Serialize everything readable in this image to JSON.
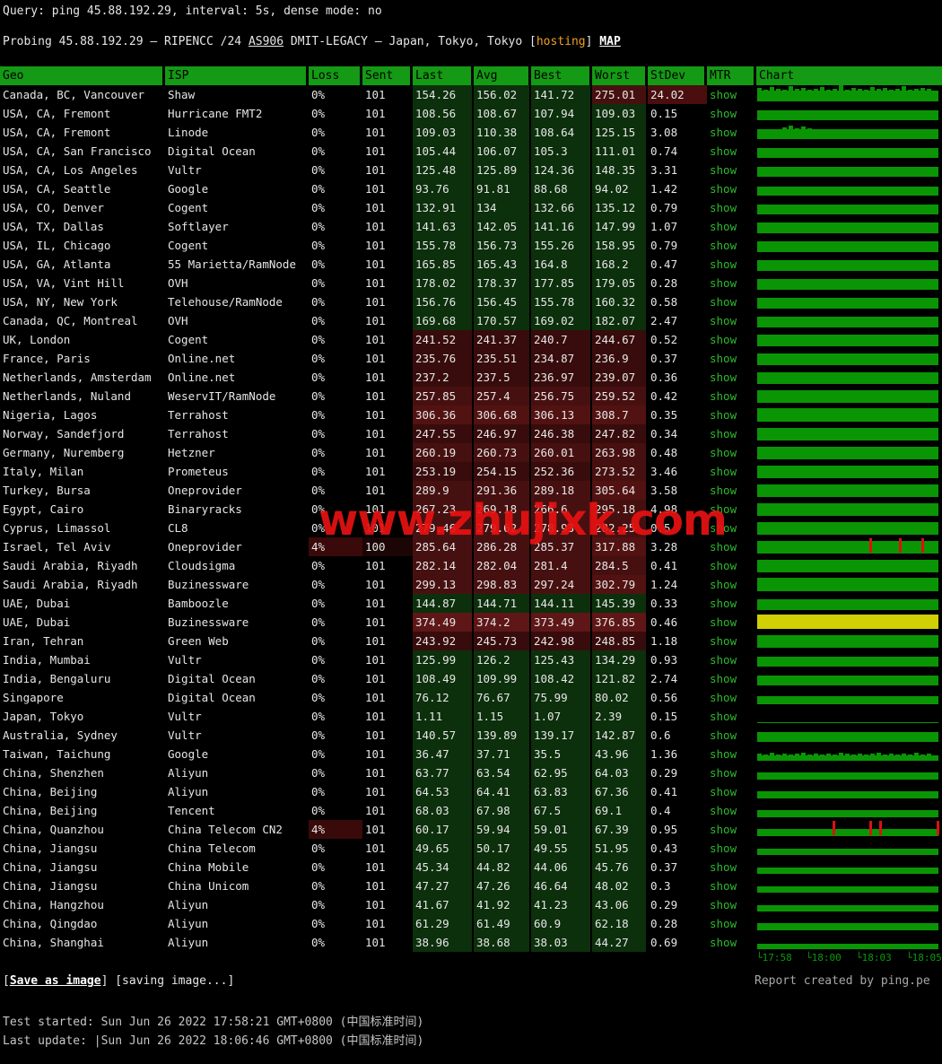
{
  "query_line": "Query: ping 45.88.192.29, interval: 5s, dense mode: no",
  "probe": {
    "prefix": "Probing 45.88.192.29 — RIPENCC /24 ",
    "asn": "AS906",
    "mid": " DMIT-LEGACY — Japan, Tokyo, Tokyo [",
    "hosting": "hosting",
    "suffix": "] ",
    "map": "MAP"
  },
  "columns": [
    "Geo",
    "ISP",
    "Loss",
    "Sent",
    "Last",
    "Avg",
    "Best",
    "Worst",
    "StDev",
    "MTR",
    "Chart"
  ],
  "mtr_label": "show",
  "rows": [
    {
      "geo": "Canada, BC, Vancouver",
      "isp": "Shaw",
      "loss": "0%",
      "sent": "101",
      "last": "154.26",
      "avg": "156.02",
      "best": "141.72",
      "worst": "275.01",
      "stdev": "24.02",
      "bar": {
        "h": 12,
        "spikes": [
          3,
          1,
          4,
          2,
          1,
          5,
          2,
          3,
          1,
          2,
          4,
          1,
          2,
          6,
          1,
          3,
          2,
          1,
          4,
          2,
          3,
          1,
          2,
          5,
          1,
          2,
          3,
          2
        ]
      }
    },
    {
      "geo": "USA, CA, Fremont",
      "isp": "Hurricane FMT2",
      "loss": "0%",
      "sent": "101",
      "last": "108.56",
      "avg": "108.67",
      "best": "107.94",
      "worst": "109.03",
      "stdev": "0.15",
      "bar": {
        "h": 11
      }
    },
    {
      "geo": "USA, CA, Fremont",
      "isp": "Linode",
      "loss": "0%",
      "sent": "101",
      "last": "109.03",
      "avg": "110.38",
      "best": "108.64",
      "worst": "125.15",
      "stdev": "3.08",
      "bar": {
        "h": 11,
        "spikes": [
          0,
          0,
          0,
          0,
          2,
          4,
          1,
          3,
          1,
          0,
          0,
          0,
          0,
          0,
          0,
          0,
          0,
          0,
          0,
          0,
          0,
          0,
          0,
          0,
          0,
          0,
          0,
          0
        ]
      }
    },
    {
      "geo": "USA, CA, San Francisco",
      "isp": "Digital Ocean",
      "loss": "0%",
      "sent": "101",
      "last": "105.44",
      "avg": "106.07",
      "best": "105.3",
      "worst": "111.01",
      "stdev": "0.74",
      "bar": {
        "h": 11
      }
    },
    {
      "geo": "USA, CA, Los Angeles",
      "isp": "Vultr",
      "loss": "0%",
      "sent": "101",
      "last": "125.48",
      "avg": "125.89",
      "best": "124.36",
      "worst": "148.35",
      "stdev": "3.31",
      "bar": {
        "h": 11
      }
    },
    {
      "geo": "USA, CA, Seattle",
      "isp": "Google",
      "loss": "0%",
      "sent": "101",
      "last": "93.76",
      "avg": "91.81",
      "best": "88.68",
      "worst": "94.02",
      "stdev": "1.42",
      "bar": {
        "h": 10
      }
    },
    {
      "geo": "USA, CO, Denver",
      "isp": "Cogent",
      "loss": "0%",
      "sent": "101",
      "last": "132.91",
      "avg": "134",
      "best": "132.66",
      "worst": "135.12",
      "stdev": "0.79",
      "bar": {
        "h": 11
      }
    },
    {
      "geo": "USA, TX, Dallas",
      "isp": "Softlayer",
      "loss": "0%",
      "sent": "101",
      "last": "141.63",
      "avg": "142.05",
      "best": "141.16",
      "worst": "147.99",
      "stdev": "1.07",
      "bar": {
        "h": 12
      }
    },
    {
      "geo": "USA, IL, Chicago",
      "isp": "Cogent",
      "loss": "0%",
      "sent": "101",
      "last": "155.78",
      "avg": "156.73",
      "best": "155.26",
      "worst": "158.95",
      "stdev": "0.79",
      "bar": {
        "h": 12
      }
    },
    {
      "geo": "USA, GA, Atlanta",
      "isp": "55 Marietta/RamNode",
      "loss": "0%",
      "sent": "101",
      "last": "165.85",
      "avg": "165.43",
      "best": "164.8",
      "worst": "168.2",
      "stdev": "0.47",
      "bar": {
        "h": 12
      }
    },
    {
      "geo": "USA, VA, Vint Hill",
      "isp": "OVH",
      "loss": "0%",
      "sent": "101",
      "last": "178.02",
      "avg": "178.37",
      "best": "177.85",
      "worst": "179.05",
      "stdev": "0.28",
      "bar": {
        "h": 12
      }
    },
    {
      "geo": "USA, NY, New York",
      "isp": "Telehouse/RamNode",
      "loss": "0%",
      "sent": "101",
      "last": "156.76",
      "avg": "156.45",
      "best": "155.78",
      "worst": "160.32",
      "stdev": "0.58",
      "bar": {
        "h": 12
      }
    },
    {
      "geo": "Canada, QC, Montreal",
      "isp": "OVH",
      "loss": "0%",
      "sent": "101",
      "last": "169.68",
      "avg": "170.57",
      "best": "169.02",
      "worst": "182.07",
      "stdev": "2.47",
      "bar": {
        "h": 12
      }
    },
    {
      "geo": "UK, London",
      "isp": "Cogent",
      "loss": "0%",
      "sent": "101",
      "last": "241.52",
      "avg": "241.37",
      "best": "240.7",
      "worst": "244.67",
      "stdev": "0.52",
      "bar": {
        "h": 13
      }
    },
    {
      "geo": "France, Paris",
      "isp": "Online.net",
      "loss": "0%",
      "sent": "101",
      "last": "235.76",
      "avg": "235.51",
      "best": "234.87",
      "worst": "236.9",
      "stdev": "0.37",
      "bar": {
        "h": 13
      }
    },
    {
      "geo": "Netherlands, Amsterdam",
      "isp": "Online.net",
      "loss": "0%",
      "sent": "101",
      "last": "237.2",
      "avg": "237.5",
      "best": "236.97",
      "worst": "239.07",
      "stdev": "0.36",
      "bar": {
        "h": 13
      }
    },
    {
      "geo": "Netherlands, Nuland",
      "isp": "WeservIT/RamNode",
      "loss": "0%",
      "sent": "101",
      "last": "257.85",
      "avg": "257.4",
      "best": "256.75",
      "worst": "259.52",
      "stdev": "0.42",
      "bar": {
        "h": 14
      }
    },
    {
      "geo": "Nigeria, Lagos",
      "isp": "Terrahost",
      "loss": "0%",
      "sent": "101",
      "last": "306.36",
      "avg": "306.68",
      "best": "306.13",
      "worst": "308.7",
      "stdev": "0.35",
      "bar": {
        "h": 15
      }
    },
    {
      "geo": "Norway, Sandefjord",
      "isp": "Terrahost",
      "loss": "0%",
      "sent": "101",
      "last": "247.55",
      "avg": "246.97",
      "best": "246.38",
      "worst": "247.82",
      "stdev": "0.34",
      "bar": {
        "h": 14
      }
    },
    {
      "geo": "Germany, Nuremberg",
      "isp": "Hetzner",
      "loss": "0%",
      "sent": "101",
      "last": "260.19",
      "avg": "260.73",
      "best": "260.01",
      "worst": "263.98",
      "stdev": "0.48",
      "bar": {
        "h": 14
      }
    },
    {
      "geo": "Italy, Milan",
      "isp": "Prometeus",
      "loss": "0%",
      "sent": "101",
      "last": "253.19",
      "avg": "254.15",
      "best": "252.36",
      "worst": "273.52",
      "stdev": "3.46",
      "bar": {
        "h": 14
      }
    },
    {
      "geo": "Turkey, Bursa",
      "isp": "Oneprovider",
      "loss": "0%",
      "sent": "101",
      "last": "289.9",
      "avg": "291.36",
      "best": "289.18",
      "worst": "305.64",
      "stdev": "3.58",
      "bar": {
        "h": 14
      }
    },
    {
      "geo": "Egypt, Cairo",
      "isp": "Binaryracks",
      "loss": "0%",
      "sent": "101",
      "last": "267.23",
      "avg": "269.18",
      "best": "266.6",
      "worst": "295.18",
      "stdev": "4.98",
      "bar": {
        "h": 14
      }
    },
    {
      "geo": "Cyprus, Limassol",
      "isp": "CL8",
      "loss": "0%",
      "sent": "101",
      "last": "279.46",
      "avg": "279.62",
      "best": "278.93",
      "worst": "282.25",
      "stdev": "0.5",
      "bar": {
        "h": 14
      }
    },
    {
      "geo": "Israel, Tel Aviv",
      "isp": "Oneprovider",
      "loss": "4%",
      "sent": "100",
      "loss_hl": true,
      "sent_hl": true,
      "last": "285.64",
      "avg": "286.28",
      "best": "285.37",
      "worst": "317.88",
      "stdev": "3.28",
      "bar": {
        "h": 14,
        "ticks": [
          0.62,
          0.78,
          0.9
        ]
      }
    },
    {
      "geo": "Saudi Arabia, Riyadh",
      "isp": "Cloudsigma",
      "loss": "0%",
      "sent": "101",
      "last": "282.14",
      "avg": "282.04",
      "best": "281.4",
      "worst": "284.5",
      "stdev": "0.41",
      "bar": {
        "h": 14
      }
    },
    {
      "geo": "Saudi Arabia, Riyadh",
      "isp": "Buzinessware",
      "loss": "0%",
      "sent": "101",
      "last": "299.13",
      "avg": "298.83",
      "best": "297.24",
      "worst": "302.79",
      "stdev": "1.24",
      "bar": {
        "h": 15
      }
    },
    {
      "geo": "UAE, Dubai",
      "isp": "Bamboozle",
      "loss": "0%",
      "sent": "101",
      "last": "144.87",
      "avg": "144.71",
      "best": "144.11",
      "worst": "145.39",
      "stdev": "0.33",
      "bar": {
        "h": 12
      }
    },
    {
      "geo": "UAE, Dubai",
      "isp": "Buzinessware",
      "loss": "0%",
      "sent": "101",
      "last": "374.49",
      "avg": "374.2",
      "best": "373.49",
      "worst": "376.85",
      "stdev": "0.46",
      "bar": {
        "h": 16,
        "yellow": true
      }
    },
    {
      "geo": "Iran, Tehran",
      "isp": "Green Web",
      "loss": "0%",
      "sent": "101",
      "last": "243.92",
      "avg": "245.73",
      "best": "242.98",
      "worst": "248.85",
      "stdev": "1.18",
      "bar": {
        "h": 14
      }
    },
    {
      "geo": "India, Mumbai",
      "isp": "Vultr",
      "loss": "0%",
      "sent": "101",
      "last": "125.99",
      "avg": "126.2",
      "best": "125.43",
      "worst": "134.29",
      "stdev": "0.93",
      "bar": {
        "h": 11
      }
    },
    {
      "geo": "India, Bengaluru",
      "isp": "Digital Ocean",
      "loss": "0%",
      "sent": "101",
      "last": "108.49",
      "avg": "109.99",
      "best": "108.42",
      "worst": "121.82",
      "stdev": "2.74",
      "bar": {
        "h": 11
      }
    },
    {
      "geo": "Singapore",
      "isp": "Digital Ocean",
      "loss": "0%",
      "sent": "101",
      "last": "76.12",
      "avg": "76.67",
      "best": "75.99",
      "worst": "80.02",
      "stdev": "0.56",
      "bar": {
        "h": 9
      }
    },
    {
      "geo": "Japan, Tokyo",
      "isp": "Vultr",
      "loss": "0%",
      "sent": "101",
      "last": "1.11",
      "avg": "1.15",
      "best": "1.07",
      "worst": "2.39",
      "stdev": "0.15",
      "bar": {
        "h": 1
      }
    },
    {
      "geo": "Australia, Sydney",
      "isp": "Vultr",
      "loss": "0%",
      "sent": "101",
      "last": "140.57",
      "avg": "139.89",
      "best": "139.17",
      "worst": "142.87",
      "stdev": "0.6",
      "bar": {
        "h": 11
      }
    },
    {
      "geo": "Taiwan, Taichung",
      "isp": "Google",
      "loss": "0%",
      "sent": "101",
      "last": "36.47",
      "avg": "37.71",
      "best": "35.5",
      "worst": "43.96",
      "stdev": "1.36",
      "bar": {
        "h": 6,
        "spikes": [
          2,
          1,
          3,
          1,
          2,
          1,
          2,
          3,
          1,
          2,
          1,
          2,
          1,
          3,
          2,
          1,
          2,
          1,
          2,
          3,
          1,
          2,
          1,
          2,
          1,
          3,
          1,
          2
        ]
      }
    },
    {
      "geo": "China, Shenzhen",
      "isp": "Aliyun",
      "loss": "0%",
      "sent": "101",
      "last": "63.77",
      "avg": "63.54",
      "best": "62.95",
      "worst": "64.03",
      "stdev": "0.29",
      "bar": {
        "h": 8
      }
    },
    {
      "geo": "China, Beijing",
      "isp": "Aliyun",
      "loss": "0%",
      "sent": "101",
      "last": "64.53",
      "avg": "64.41",
      "best": "63.83",
      "worst": "67.36",
      "stdev": "0.41",
      "bar": {
        "h": 8
      }
    },
    {
      "geo": "China, Beijing",
      "isp": "Tencent",
      "loss": "0%",
      "sent": "101",
      "last": "68.03",
      "avg": "67.98",
      "best": "67.5",
      "worst": "69.1",
      "stdev": "0.4",
      "bar": {
        "h": 8
      }
    },
    {
      "geo": "China, Quanzhou",
      "isp": "China Telecom CN2",
      "loss": "4%",
      "sent": "101",
      "loss_hl": true,
      "last": "60.17",
      "avg": "59.94",
      "best": "59.01",
      "worst": "67.39",
      "stdev": "0.95",
      "bar": {
        "h": 8,
        "ticks": [
          0.42,
          0.62,
          0.67,
          0.98
        ]
      }
    },
    {
      "geo": "China, Jiangsu",
      "isp": "China Telecom",
      "loss": "0%",
      "sent": "101",
      "last": "49.65",
      "avg": "50.17",
      "best": "49.55",
      "worst": "51.95",
      "stdev": "0.43",
      "bar": {
        "h": 7
      }
    },
    {
      "geo": "China, Jiangsu",
      "isp": "China Mobile",
      "loss": "0%",
      "sent": "101",
      "last": "45.34",
      "avg": "44.82",
      "best": "44.06",
      "worst": "45.76",
      "stdev": "0.37",
      "bar": {
        "h": 7
      }
    },
    {
      "geo": "China, Jiangsu",
      "isp": "China Unicom",
      "loss": "0%",
      "sent": "101",
      "last": "47.27",
      "avg": "47.26",
      "best": "46.64",
      "worst": "48.02",
      "stdev": "0.3",
      "bar": {
        "h": 7
      }
    },
    {
      "geo": "China, Hangzhou",
      "isp": "Aliyun",
      "loss": "0%",
      "sent": "101",
      "last": "41.67",
      "avg": "41.92",
      "best": "41.23",
      "worst": "43.06",
      "stdev": "0.29",
      "bar": {
        "h": 7
      }
    },
    {
      "geo": "China, Qingdao",
      "isp": "Aliyun",
      "loss": "0%",
      "sent": "101",
      "last": "61.29",
      "avg": "61.49",
      "best": "60.9",
      "worst": "62.18",
      "stdev": "0.28",
      "bar": {
        "h": 8
      }
    },
    {
      "geo": "China, Shanghai",
      "isp": "Aliyun",
      "loss": "0%",
      "sent": "101",
      "last": "38.96",
      "avg": "38.68",
      "best": "38.03",
      "worst": "44.27",
      "stdev": "0.69",
      "bar": {
        "h": 6
      }
    }
  ],
  "chart": {
    "axis_labels": [
      "17:58",
      "18:00",
      "18:03",
      "18:05"
    ]
  },
  "footer": {
    "save_label": "Save as image",
    "saving_label": "[saving image...]",
    "report": "Report created by ping.pe",
    "test_started": "Test started: Sun Jun 26 2022 17:58:21 GMT+0800 (中国标准时间)",
    "last_update": "Last update: |Sun Jun 26 2022 18:06:46 GMT+0800 (中国标准时间)"
  },
  "watermark": "www.zhujixk.com",
  "colors": {
    "header_green": "#149a14",
    "bar_green": "#0a9505",
    "bar_yellow": "#d0d004",
    "axis_green": "#0a9a0a",
    "link_green": "#2db92d",
    "hosting_orange": "#efa023",
    "watermark_red": "#e81212",
    "loss_red": "#3a0a0a",
    "lat_green_bg": "#0c2f0c",
    "lat_red_bg": "#471010"
  }
}
